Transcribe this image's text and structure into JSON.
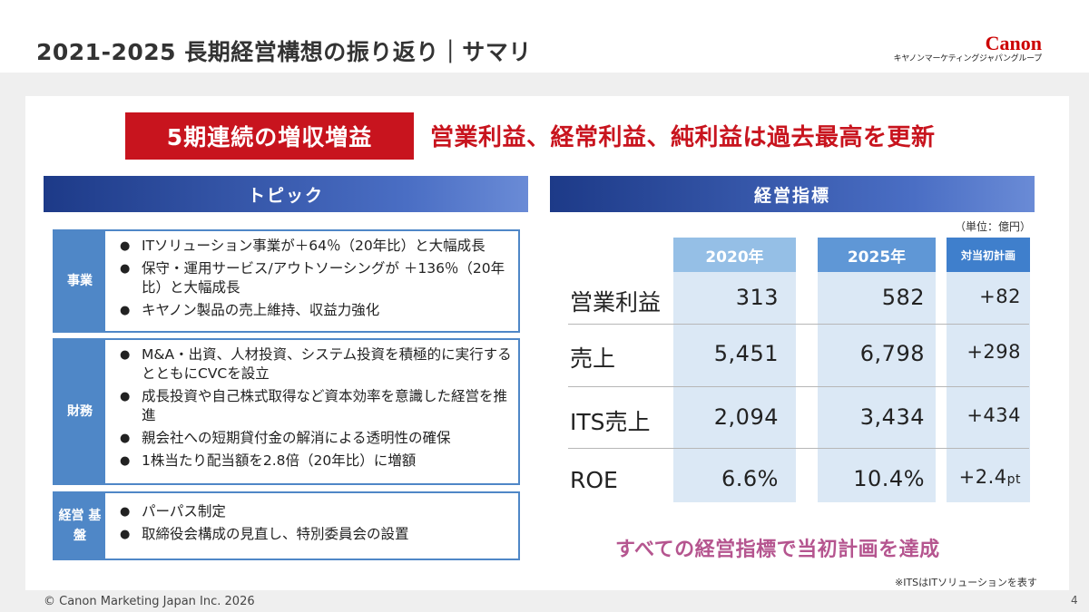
{
  "header": {
    "title": "2021-2025 長期経営構想の振り返り｜サマリ",
    "logo_mark": "Canon",
    "logo_sub": "キヤノンマーケティングジャパングループ"
  },
  "summary": {
    "badge": "5期連続の増収増益",
    "headline": "営業利益、経常利益、純利益は過去最高を更新"
  },
  "topics": {
    "header": "トピック",
    "sections": [
      {
        "label": "事業",
        "items": [
          "ITソリューション事業が＋64％（20年比）と大幅成長",
          "保守・運用サービス/アウトソーシングが ＋136％（20年比）と大幅成長",
          "キヤノン製品の売上維持、収益力強化"
        ]
      },
      {
        "label": "財務",
        "items": [
          "M&A・出資、人材投資、システム投資を積極的に実行するとともにCVCを設立",
          "成長投資や自己株式取得など資本効率を意識した経営を推進",
          "親会社への短期貸付金の解消による透明性の確保",
          "1株当たり配当額を2.8倍（20年比）に増額"
        ]
      },
      {
        "label": "経営 基盤",
        "items": [
          "パーパス制定",
          "取締役会構成の見直し、特別委員会の設置"
        ]
      }
    ]
  },
  "kpi": {
    "header": "経営指標",
    "unit": "（単位：億円）",
    "columns": [
      "2020年",
      "2025年",
      "対当初計画"
    ],
    "rows": [
      {
        "label": "営業利益",
        "v2020": "313",
        "v2025": "582",
        "plan": "+82",
        "plan_unit": ""
      },
      {
        "label": "売上",
        "v2020": "5,451",
        "v2025": "6,798",
        "plan": "+298",
        "plan_unit": ""
      },
      {
        "label": "ITS売上",
        "v2020": "2,094",
        "v2025": "3,434",
        "plan": "+434",
        "plan_unit": ""
      },
      {
        "label": "ROE",
        "v2020": "6.6%",
        "v2025": "10.4%",
        "plan": "+2.4",
        "plan_unit": "pt"
      }
    ],
    "achievement": "すべての経営指標で当初計画を達成",
    "note": "※ITSはITソリューションを表す"
  },
  "footer": {
    "copyright": "© Canon Marketing Japan Inc. 2026",
    "page": "4"
  }
}
